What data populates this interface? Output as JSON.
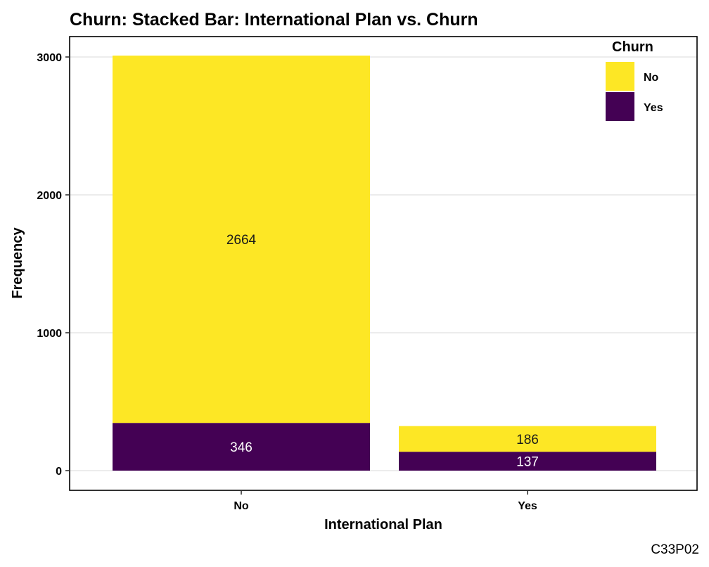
{
  "chart_data": {
    "type": "bar",
    "stacked": true,
    "title": "Churn: Stacked Bar: International Plan vs. Churn",
    "xlabel": "International Plan",
    "ylabel": "Frequency",
    "categories": [
      "No",
      "Yes"
    ],
    "series": [
      {
        "name": "Yes",
        "values": [
          346,
          137
        ],
        "color": "#440154",
        "label_color": "#ffffff"
      },
      {
        "name": "No",
        "values": [
          2664,
          186
        ],
        "color": "#FDE725",
        "label_color": "#1a1a1a"
      }
    ],
    "ylim": [
      0,
      3010
    ],
    "yticks": [
      0,
      1000,
      2000,
      3000
    ],
    "grid": "horizontal",
    "legend": {
      "title": "Churn",
      "position": "top-right",
      "order": [
        "No",
        "Yes"
      ]
    },
    "caption": "C33P02"
  }
}
